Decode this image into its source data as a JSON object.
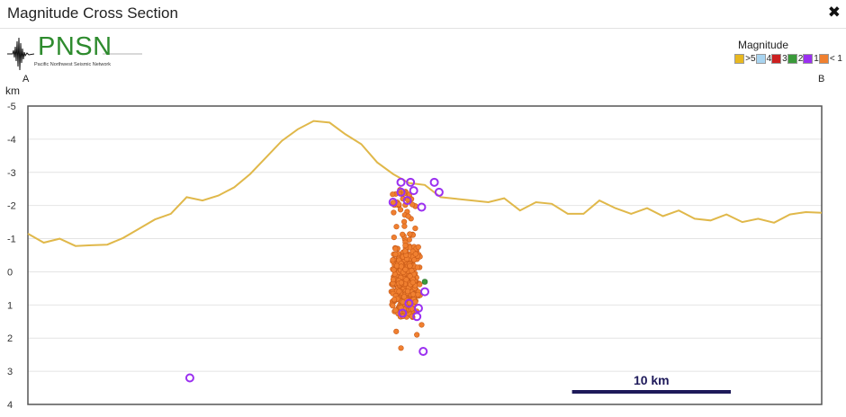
{
  "window": {
    "title": "Magnitude Cross Section",
    "close_label": "✖"
  },
  "logo": {
    "text": "PNSN",
    "subtitle": "Pacific Northwest Seismic Network"
  },
  "legend": {
    "title": "Magnitude",
    "items": [
      {
        "label": ">5",
        "color": "#e8b820"
      },
      {
        "label": "4",
        "color": "#a8d4f0"
      },
      {
        "label": "3",
        "color": "#cc2020"
      },
      {
        "label": "2",
        "color": "#3a9a3a"
      },
      {
        "label": "1",
        "color": "#9b30f0"
      },
      {
        "label": "< 1",
        "color": "#f08030"
      }
    ]
  },
  "section": {
    "start_label": "A",
    "end_label": "B"
  },
  "chart_data": {
    "type": "scatter",
    "ylabel": "km",
    "ylim": [
      -5,
      4
    ],
    "y_ticks": [
      "-5",
      "-4",
      "-3",
      "-2",
      "-1",
      "0",
      "1",
      "2",
      "3",
      "4"
    ],
    "x_range_km": [
      0,
      50
    ],
    "scale_bar": {
      "label": "10 km",
      "length_km": 10,
      "color": "#1e1a5a"
    },
    "grid": true,
    "topography": {
      "color": "#e0b84a",
      "x": [
        0,
        1,
        2,
        3,
        4,
        5,
        6,
        7,
        8,
        9,
        10,
        11,
        12,
        13,
        14,
        15,
        16,
        17,
        18,
        19,
        20,
        21,
        22,
        23,
        24,
        25,
        26,
        27,
        28,
        29,
        30,
        31,
        32,
        33,
        34,
        35,
        36,
        37,
        38,
        39,
        40,
        41,
        42,
        43,
        44,
        45,
        46,
        47,
        48,
        49,
        50
      ],
      "y": [
        -1.15,
        -0.88,
        -1.0,
        -0.78,
        -0.8,
        -0.82,
        -1.02,
        -1.3,
        -1.58,
        -1.75,
        -2.25,
        -2.15,
        -2.3,
        -2.55,
        -2.95,
        -3.45,
        -3.95,
        -4.3,
        -4.55,
        -4.5,
        -4.15,
        -3.85,
        -3.3,
        -2.95,
        -2.68,
        -2.62,
        -2.25,
        -2.2,
        -2.15,
        -2.1,
        -2.22,
        -1.85,
        -2.1,
        -2.05,
        -1.75,
        -1.75,
        -2.15,
        -1.92,
        -1.75,
        -1.92,
        -1.68,
        -1.85,
        -1.6,
        -1.55,
        -1.73,
        -1.5,
        -1.6,
        -1.48,
        -1.73,
        -1.8,
        -1.78
      ]
    },
    "series": [
      {
        "magnitude_class": "< 1",
        "color": "#f08030",
        "cluster": {
          "x_center": 23.8,
          "x_spread": 1.0,
          "y_top": -2.5,
          "y_bottom": 1.4,
          "count": 420
        },
        "extra_points": [
          {
            "x": 23.5,
            "y": 2.3
          },
          {
            "x": 24.8,
            "y": 1.6
          },
          {
            "x": 23.2,
            "y": 1.8
          },
          {
            "x": 24.5,
            "y": 1.9
          }
        ]
      },
      {
        "magnitude_class": "2",
        "color": "#3a9a3a",
        "points": [
          {
            "x": 25.0,
            "y": 0.3
          }
        ]
      },
      {
        "magnitude_class": "1",
        "color": "#9b30f0",
        "points": [
          {
            "x": 10.2,
            "y": 3.2
          },
          {
            "x": 23.5,
            "y": -2.7
          },
          {
            "x": 24.1,
            "y": -2.7
          },
          {
            "x": 25.6,
            "y": -2.7
          },
          {
            "x": 25.9,
            "y": -2.4
          },
          {
            "x": 23.0,
            "y": -2.1
          },
          {
            "x": 23.9,
            "y": -2.15
          },
          {
            "x": 24.8,
            "y": -1.95
          },
          {
            "x": 24.3,
            "y": -2.45
          },
          {
            "x": 23.5,
            "y": -2.4
          },
          {
            "x": 24.5,
            "y": 1.35
          },
          {
            "x": 25.0,
            "y": 0.6
          },
          {
            "x": 23.6,
            "y": 1.25
          },
          {
            "x": 24.0,
            "y": 0.95
          },
          {
            "x": 24.6,
            "y": 1.1
          },
          {
            "x": 24.9,
            "y": 2.4
          }
        ]
      }
    ]
  }
}
